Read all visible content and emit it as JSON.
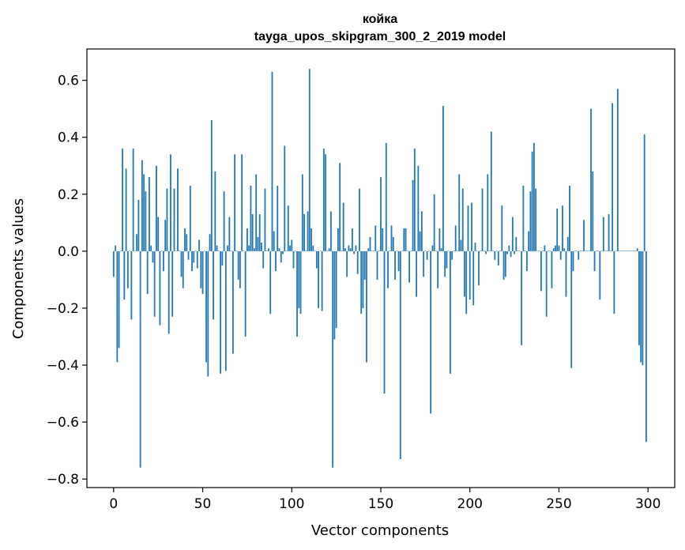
{
  "chart_data": {
    "type": "bar",
    "title": "койка",
    "subtitle": "tayga_upos_skipgram_300_2_2019 model",
    "xlabel": "Vector components",
    "ylabel": "Components values",
    "xlim": [
      -15,
      315
    ],
    "ylim": [
      -0.83,
      0.71
    ],
    "xticks": [
      0,
      50,
      100,
      150,
      200,
      250,
      300
    ],
    "yticks": [
      -0.8,
      -0.6,
      -0.4,
      -0.2,
      0.0,
      0.2,
      0.4,
      0.6
    ],
    "ytick_labels": [
      "−0.8",
      "−0.6",
      "−0.4",
      "−0.2",
      "0.0",
      "0.2",
      "0.4",
      "0.6"
    ],
    "bar_color": "#1f77b4",
    "grid": false,
    "legend": "none",
    "x": "0..299 (component index)",
    "values": [
      -0.09,
      0.02,
      -0.39,
      -0.34,
      0.0,
      0.36,
      -0.17,
      0.29,
      -0.13,
      0.0,
      -0.24,
      0.36,
      0.0,
      0.06,
      0.18,
      -0.76,
      0.32,
      0.27,
      0.21,
      -0.15,
      0.26,
      0.02,
      -0.04,
      -0.23,
      0.3,
      0.12,
      -0.26,
      0.0,
      -0.07,
      0.11,
      0.22,
      -0.29,
      0.34,
      -0.23,
      0.22,
      0.0,
      0.29,
      0.0,
      -0.09,
      -0.13,
      0.08,
      0.06,
      -0.03,
      0.23,
      -0.07,
      -0.04,
      0.0,
      -0.06,
      0.04,
      -0.13,
      -0.15,
      0.0,
      -0.39,
      -0.44,
      0.06,
      0.46,
      -0.24,
      0.28,
      0.02,
      0.0,
      -0.43,
      -0.05,
      0.21,
      -0.42,
      0.02,
      0.12,
      0.0,
      -0.36,
      0.34,
      0.0,
      -0.1,
      -0.13,
      0.34,
      0.0,
      -0.3,
      0.08,
      0.02,
      0.23,
      0.13,
      0.01,
      0.27,
      0.05,
      0.13,
      0.03,
      -0.06,
      0.22,
      0.0,
      0.01,
      -0.22,
      0.63,
      0.07,
      -0.07,
      0.23,
      0.01,
      -0.04,
      -0.01,
      0.37,
      0.0,
      0.16,
      0.02,
      0.04,
      -0.06,
      0.0,
      -0.3,
      -0.2,
      -0.22,
      0.27,
      0.13,
      0.0,
      0.14,
      0.64,
      0.08,
      0.02,
      0.0,
      -0.06,
      -0.2,
      0.0,
      -0.21,
      0.36,
      0.34,
      0.0,
      0.01,
      0.14,
      -0.76,
      -0.31,
      -0.27,
      0.08,
      0.31,
      0.0,
      0.17,
      0.01,
      -0.09,
      0.02,
      0.01,
      0.08,
      -0.01,
      0.02,
      -0.08,
      0.22,
      -0.22,
      -0.2,
      -0.1,
      -0.39,
      0.01,
      0.05,
      0.0,
      0.0,
      0.09,
      -0.1,
      0.0,
      0.26,
      0.08,
      -0.5,
      0.38,
      -0.13,
      0.0,
      0.09,
      0.05,
      -0.1,
      0.0,
      -0.07,
      -0.73,
      0.0,
      0.08,
      0.08,
      0.0,
      -0.11,
      0.0,
      0.25,
      0.36,
      -0.16,
      0.3,
      0.07,
      0.14,
      -0.09,
      0.0,
      -0.03,
      0.0,
      -0.57,
      0.02,
      0.2,
      0.0,
      -0.13,
      0.08,
      0.01,
      0.51,
      -0.09,
      -0.06,
      0.0,
      -0.43,
      -0.03,
      0.0,
      0.09,
      0.0,
      0.27,
      0.04,
      0.22,
      -0.16,
      -0.22,
      0.16,
      -0.17,
      0.17,
      -0.19,
      0.03,
      0.0,
      -0.12,
      0.0,
      0.22,
      0.0,
      -0.01,
      0.27,
      0.0,
      0.42,
      0.0,
      -0.03,
      0.0,
      -0.05,
      0.0,
      0.16,
      -0.1,
      -0.09,
      -0.01,
      0.02,
      -0.02,
      0.12,
      -0.01,
      0.05,
      0.0,
      0.0,
      -0.33,
      0.23,
      0.0,
      -0.07,
      0.07,
      0.21,
      0.35,
      0.38,
      0.22,
      0.0,
      0.0,
      -0.14,
      0.0,
      0.02,
      -0.23,
      0.0,
      0.0,
      -0.13,
      0.01,
      0.02,
      0.15,
      0.02,
      -0.03,
      0.16,
      0.01,
      -0.16,
      0.05,
      0.23,
      -0.41,
      -0.07,
      0.0,
      0.0,
      -0.03,
      0.0,
      0.0,
      0.11,
      0.0,
      0.0,
      0.0,
      0.5,
      0.28,
      -0.07,
      0.0,
      0.0,
      -0.17,
      0.0,
      0.12,
      0.0,
      0.0,
      0.13,
      0.0,
      0.52,
      -0.22,
      0.0,
      0.57,
      0.0,
      0.0,
      0.0,
      0.0,
      0.0,
      0.0,
      0.0,
      0.0,
      0.0,
      0.0,
      0.01,
      -0.33,
      -0.39,
      -0.4,
      0.41,
      -0.67
    ]
  }
}
